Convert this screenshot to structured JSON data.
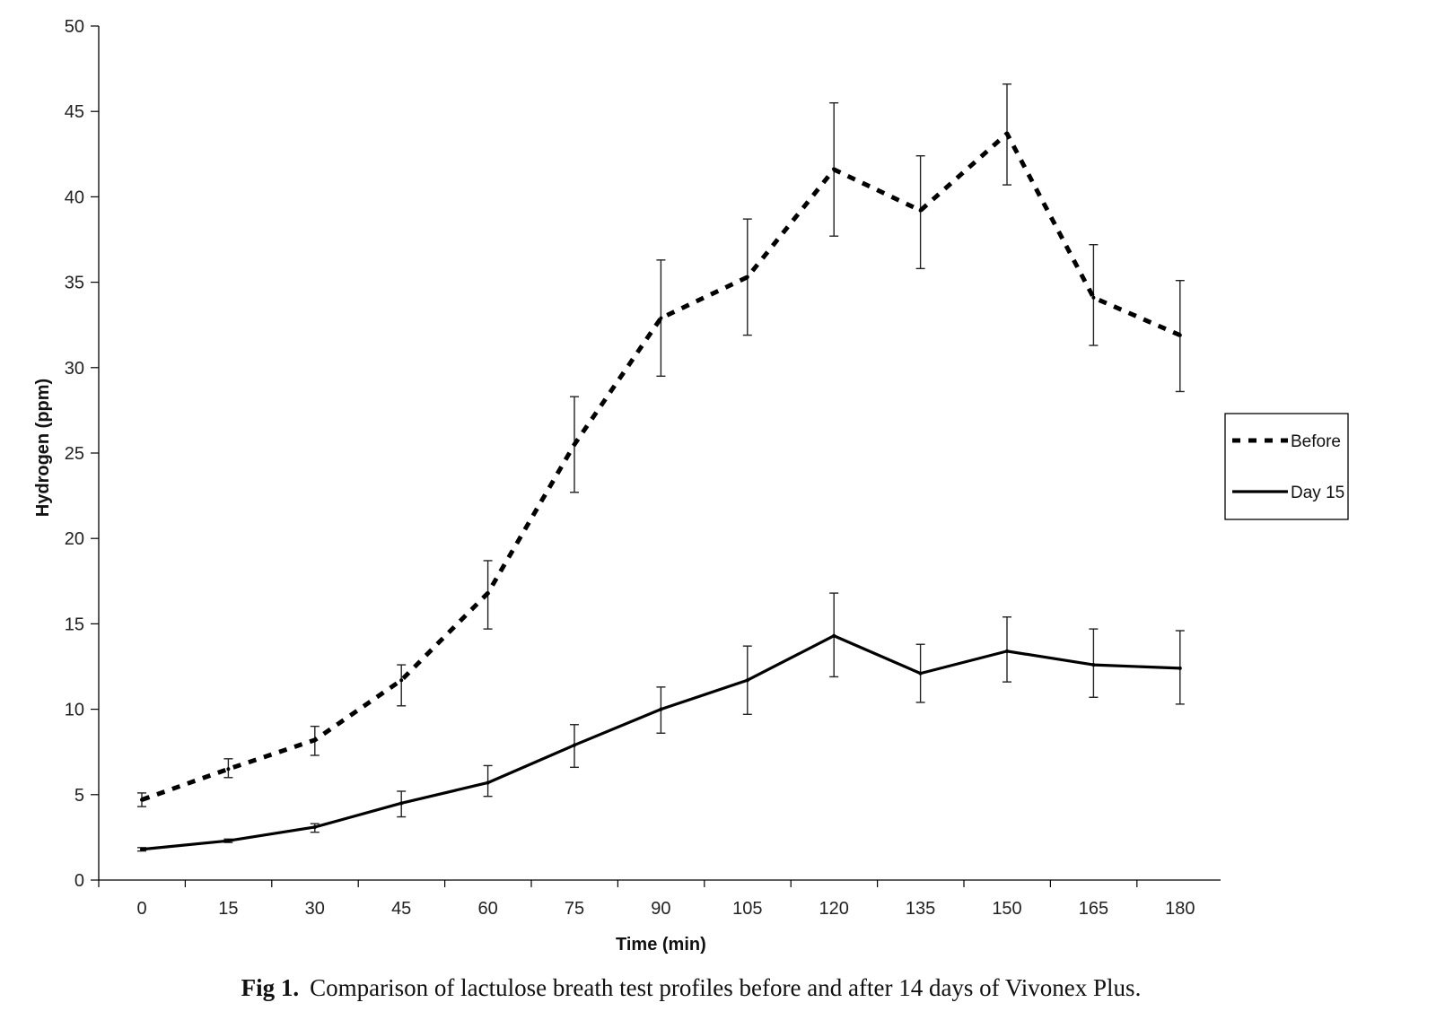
{
  "chart_data": {
    "type": "line",
    "xlabel": "Time (min)",
    "ylabel": "Hydrogen (ppm)",
    "ylim": [
      0,
      50
    ],
    "yticks": [
      0,
      5,
      10,
      15,
      20,
      25,
      30,
      35,
      40,
      45,
      50
    ],
    "x": [
      0,
      15,
      30,
      45,
      60,
      75,
      90,
      105,
      120,
      135,
      150,
      165,
      180
    ],
    "grid": false,
    "legend_position": "right",
    "series": [
      {
        "name": "Before",
        "style": "dashed",
        "color": "#000000",
        "values": [
          4.7,
          6.5,
          8.2,
          11.7,
          16.8,
          25.5,
          32.9,
          35.3,
          41.6,
          39.2,
          43.7,
          34.1,
          31.9
        ],
        "err_low": [
          4.3,
          6.0,
          7.3,
          10.2,
          14.7,
          22.7,
          29.5,
          31.9,
          37.7,
          35.8,
          40.7,
          31.3,
          28.6
        ],
        "err_high": [
          5.1,
          7.1,
          9.0,
          12.6,
          18.7,
          28.3,
          36.3,
          38.7,
          45.5,
          42.4,
          46.6,
          37.2,
          35.1
        ]
      },
      {
        "name": "Day 15",
        "style": "solid",
        "color": "#000000",
        "values": [
          1.8,
          2.3,
          3.1,
          4.5,
          5.7,
          7.9,
          10.0,
          11.7,
          14.3,
          12.1,
          13.4,
          12.6,
          12.4
        ],
        "err_low": [
          1.7,
          2.2,
          2.8,
          3.7,
          4.9,
          6.6,
          8.6,
          9.7,
          11.9,
          10.4,
          11.6,
          10.7,
          10.3
        ],
        "err_high": [
          1.9,
          2.4,
          3.3,
          5.2,
          6.7,
          9.1,
          11.3,
          13.7,
          16.8,
          13.8,
          15.4,
          14.7,
          14.6
        ]
      }
    ]
  },
  "caption": {
    "label": "Fig 1.",
    "text": "Comparison of lactulose breath test profiles before and after 14 days of Vivonex Plus."
  }
}
